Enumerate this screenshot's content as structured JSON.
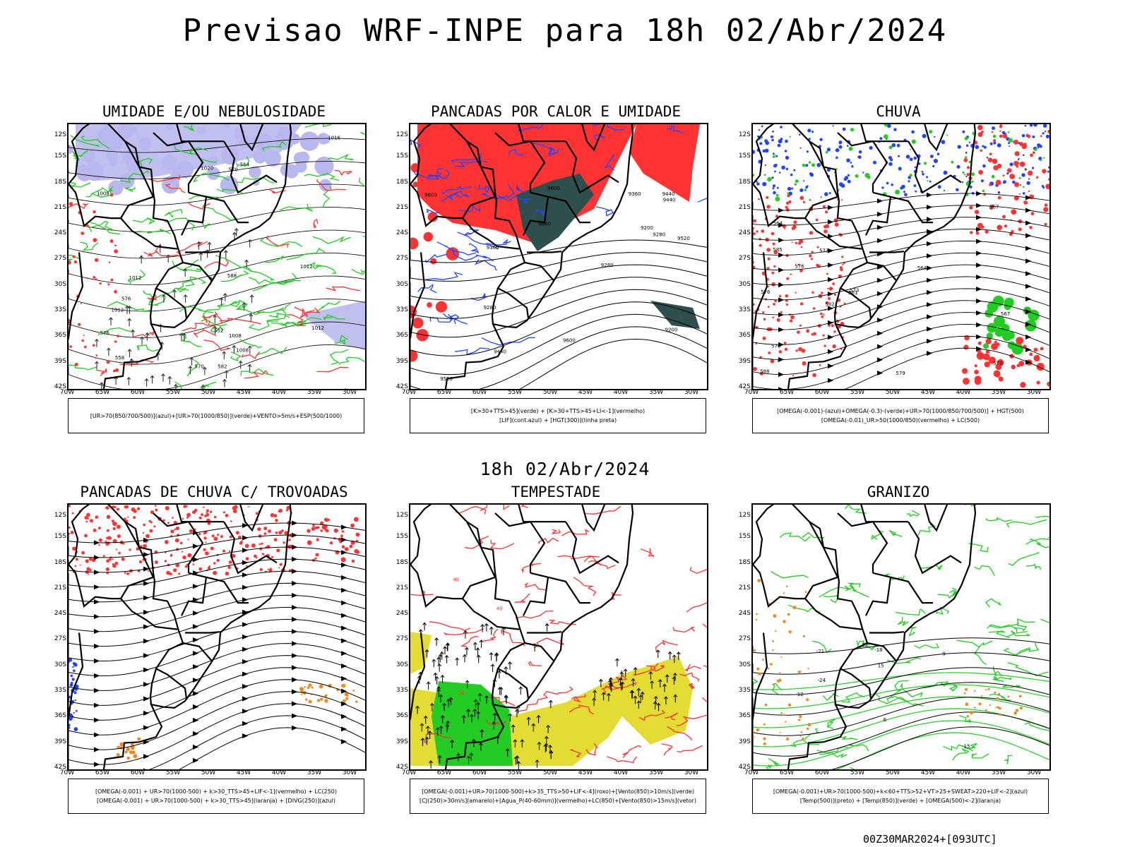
{
  "page_title": "Previsao WRF-INPE  para 18h 02/Abr/2024",
  "mid_title": "18h 02/Abr/2024",
  "footer": "00Z30MAR2024+[093UTC]",
  "axes": {
    "lat_labels": [
      "12S",
      "15S",
      "18S",
      "21S",
      "24S",
      "27S",
      "30S",
      "33S",
      "36S",
      "39S",
      "42S"
    ],
    "lon_labels": [
      "70W",
      "65W",
      "60W",
      "55W",
      "50W",
      "45W",
      "40W",
      "35W",
      "30W"
    ]
  },
  "colors": {
    "green": "#22cc22",
    "blue": "#2244ff",
    "red": "#ff3333",
    "lavender": "#b8b8ee",
    "dark_teal": "#2f4f4f",
    "yellow": "#e3dc33",
    "orange": "#ee8822",
    "black": "#000000"
  },
  "panels": [
    {
      "title": "UMIDADE E/OU NEBULOSIDADE",
      "legend": [
        "[UR>70(850/700/500)](azul)+[UR>70(1000/850)](verde)+VENTO>5m/s+ESP(500/1000)"
      ],
      "contour_labels": [
        "1008",
        "1012",
        "1012",
        "1012",
        "1008",
        "1008",
        "1012",
        "1016",
        "1020",
        "570",
        "576",
        "576",
        "570",
        "564",
        "558",
        "582",
        "552",
        "588"
      ]
    },
    {
      "title": "PANCADAS POR CALOR E UMIDADE",
      "legend": [
        "[K>30+TTS>45](verde) + [K>30+TTS>45+LI<-1](vermelho)",
        "[LIF](cont.azul) + [HGT(300)](linha preta)"
      ],
      "contour_labels": [
        "9600",
        "9680",
        "9600",
        "9600",
        "9520",
        "9440",
        "9360",
        "9280",
        "9200",
        "9440",
        "9520",
        "9440",
        "9360",
        "9280",
        "9200",
        "9280"
      ]
    },
    {
      "title": "CHUVA",
      "legend": [
        "[OMEGA(-0.001)-(azul)+OMEGA(-0.3)-(verde)+UR>70(1000/850/700/500)] + HGT(500)",
        "[OMEGA(-0.01)_UR>50(1000/850)(vermelho) + LC(500)"
      ],
      "contour_labels": [
        "588",
        "585",
        "582",
        "579",
        "576",
        "573",
        "570",
        "567",
        "564",
        "561",
        "576",
        "573",
        "570",
        "567",
        "564"
      ]
    },
    {
      "title": "PANCADAS DE CHUVA C/ TROVOADAS",
      "legend": [
        "[OMEGA(-0.001) + UR>70(1000-500) + k>30_TTS>45+LIF<-1](vermelho) + LC(250)",
        "[OMEGA(-0.001) + UR>70(1000-500) + k>30_TTS>45](laranja) + [DIVG(250)](azul)"
      ],
      "contour_labels": []
    },
    {
      "title": "TEMPESTADE",
      "legend": [
        "[OMEGA(-0.001)+UR>70(1000-500)+k>35_TTS>50+LIF<-4](roxo)+[Vento(850)>10m/s](verde)",
        "[CJ(250)>30m/s](amarelo)+[Agua_P(40-60mm)](vermelho)+LC(850)+[Vento(850)>15m/s](vetor)"
      ],
      "contour_labels": [
        "40",
        "40",
        "50"
      ]
    },
    {
      "title": "GRANIZO",
      "legend": [
        "[OMEGA(-0.001)+UR>70(1000-500)+k<60+TTS>52+VT>25+SWEAT>220+LIF<-2](azul)",
        "[Temp(500)](preto) + [Temp(850)](verde) + [OMEGA(500)<-2](laranja)"
      ],
      "contour_labels": [
        "-12",
        "-15",
        "-18",
        "-21",
        "-24",
        "15",
        "12",
        "9",
        "6"
      ]
    }
  ]
}
